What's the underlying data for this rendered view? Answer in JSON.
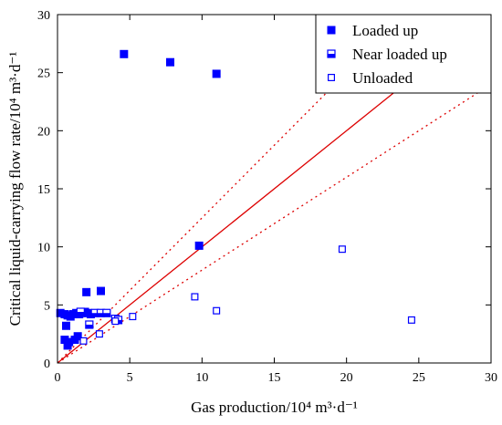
{
  "chart_data": {
    "type": "scatter",
    "xlabel": "Gas production/10⁴ m³·d⁻¹",
    "ylabel": "Critical liquid-carrying flow rate/10⁴ m³·d⁻¹",
    "xlim": [
      0,
      30
    ],
    "ylim": [
      0,
      30
    ],
    "xticks": [
      "0",
      "5",
      "10",
      "15",
      "20",
      "25",
      "30"
    ],
    "yticks": [
      "0",
      "5",
      "10",
      "15",
      "20",
      "25",
      "30"
    ],
    "grid": false,
    "legend_position": "top-right",
    "colors": {
      "series": "#0000ff",
      "lines": "#dd0000"
    },
    "series": [
      {
        "name": "Loaded up",
        "marker": "filled-square",
        "points": [
          [
            0.2,
            4.3
          ],
          [
            0.5,
            4.2
          ],
          [
            0.7,
            4.1
          ],
          [
            0.9,
            4.0
          ],
          [
            1.1,
            4.2
          ],
          [
            1.3,
            4.3
          ],
          [
            1.5,
            4.2
          ],
          [
            1.7,
            4.3
          ],
          [
            1.9,
            4.4
          ],
          [
            2.1,
            4.3
          ],
          [
            2.3,
            4.2
          ],
          [
            0.6,
            3.2
          ],
          [
            0.5,
            2.0
          ],
          [
            0.8,
            1.8
          ],
          [
            0.7,
            1.5
          ],
          [
            1.2,
            2.0
          ],
          [
            1.4,
            2.3
          ],
          [
            2.0,
            6.1
          ],
          [
            3.0,
            6.2
          ],
          [
            9.8,
            10.1
          ],
          [
            4.6,
            26.6
          ],
          [
            7.8,
            25.9
          ],
          [
            11.0,
            24.9
          ]
        ]
      },
      {
        "name": "Near loaded up",
        "marker": "half-filled-square",
        "points": [
          [
            2.2,
            3.3
          ],
          [
            2.6,
            4.3
          ],
          [
            3.0,
            4.3
          ],
          [
            3.4,
            4.3
          ],
          [
            4.0,
            3.8
          ],
          [
            4.2,
            3.7
          ],
          [
            1.6,
            4.4
          ]
        ]
      },
      {
        "name": "Unloaded",
        "marker": "open-square",
        "points": [
          [
            1.8,
            1.9
          ],
          [
            2.9,
            2.5
          ],
          [
            4.0,
            3.6
          ],
          [
            5.2,
            4.0
          ],
          [
            9.5,
            5.7
          ],
          [
            11.0,
            4.5
          ],
          [
            19.7,
            9.8
          ],
          [
            24.5,
            3.7
          ]
        ]
      }
    ],
    "reference_lines": [
      {
        "style": "solid",
        "slope": 1.0
      },
      {
        "style": "dotted",
        "slope": 1.25
      },
      {
        "style": "dotted",
        "slope": 0.8
      }
    ]
  }
}
